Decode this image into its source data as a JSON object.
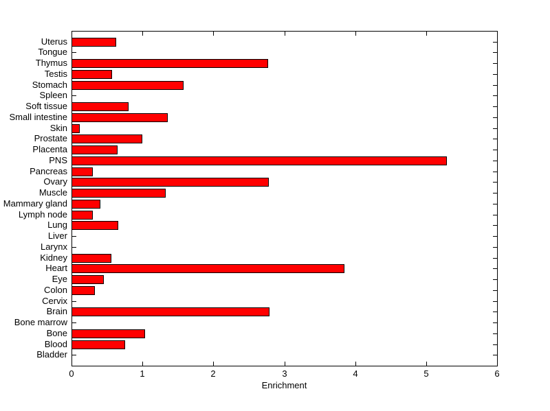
{
  "chart_data": {
    "type": "bar",
    "orientation": "horizontal",
    "xlabel": "Enrichment",
    "ylabel": "",
    "title": "",
    "xlim": [
      0,
      6
    ],
    "xticks": [
      "0",
      "1",
      "2",
      "3",
      "4",
      "5",
      "6"
    ],
    "grid": false,
    "legend": false,
    "bar_color": "#FF0000",
    "bar_edge_color": "#000000",
    "axis_color": "#000000",
    "background_color": "#FFFFFF",
    "categories": [
      "Uterus",
      "Tongue",
      "Thymus",
      "Testis",
      "Stomach",
      "Spleen",
      "Soft tissue",
      "Small intestine",
      "Skin",
      "Prostate",
      "Placenta",
      "PNS",
      "Pancreas",
      "Ovary",
      "Muscle",
      "Mammary gland",
      "Lymph node",
      "Lung",
      "Liver",
      "Larynx",
      "Kidney",
      "Heart",
      "Eye",
      "Colon",
      "Cervix",
      "Brain",
      "Bone marrow",
      "Bone",
      "Blood",
      "Bladder"
    ],
    "values": [
      0.62,
      0,
      2.76,
      0.56,
      1.57,
      0,
      0.79,
      1.35,
      0.11,
      0.99,
      0.64,
      5.28,
      0.29,
      2.77,
      1.32,
      0.4,
      0.29,
      0.65,
      0,
      0,
      0.55,
      3.84,
      0.45,
      0.32,
      0,
      2.78,
      0,
      1.03,
      0.75,
      0
    ]
  }
}
